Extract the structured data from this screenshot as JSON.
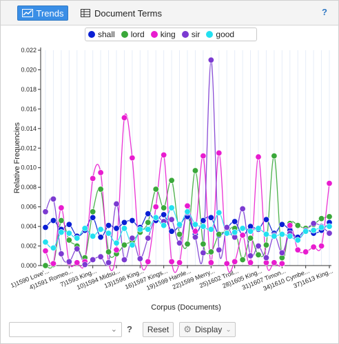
{
  "toolbar": {
    "trends_label": "Trends",
    "document_terms_label": "Document Terms",
    "help_label": "?"
  },
  "legend": [
    {
      "label": "shall",
      "color": "#0a1fd4"
    },
    {
      "label": "lord",
      "color": "#3aa83a"
    },
    {
      "label": "king",
      "color": "#e81ccf"
    },
    {
      "label": "sir",
      "color": "#7b3ad1"
    },
    {
      "label": "good",
      "color": "#22e0f0"
    }
  ],
  "footer": {
    "select_value": "",
    "help_label": "?",
    "reset_label": "Reset",
    "display_label": "Display"
  },
  "chart_data": {
    "type": "line",
    "xlabel": "Corpus (Documents)",
    "ylabel": "Relative Frequencies",
    "ylim": [
      0,
      0.022
    ],
    "yticks": [
      "0.000",
      "0.002",
      "0.004",
      "0.006",
      "0.008",
      "0.010",
      "0.012",
      "0.014",
      "0.016",
      "0.018",
      "0.020",
      "0.022"
    ],
    "x_tick_labels": [
      "1)1590 Love'...",
      "4)1591 Romeo...",
      "7)1593 King...",
      "10)1594 Midsu...",
      "13)1596 King...",
      "16)1597 Kings...",
      "19)1599 Hamle...",
      "22)1599 Merry...",
      "25)1602 Troil...",
      "28)1605 King...",
      "31)1607 Timon...",
      "34)1610 Cymbe...",
      "37)1613 King..."
    ],
    "x_tick_index": [
      0,
      3,
      6,
      9,
      12,
      15,
      18,
      21,
      24,
      27,
      30,
      33,
      36
    ],
    "n_docs": 37,
    "series": [
      {
        "name": "shall",
        "color": "#0a1fd4",
        "values": [
          0.0039,
          0.0046,
          0.0037,
          0.0042,
          0.003,
          0.0036,
          0.0049,
          0.0029,
          0.0041,
          0.0038,
          0.0044,
          0.0046,
          0.0039,
          0.0053,
          0.0046,
          0.0052,
          0.0035,
          0.0041,
          0.005,
          0.0032,
          0.0046,
          0.0049,
          0.0031,
          0.0038,
          0.0045,
          0.0031,
          0.004,
          0.0037,
          0.0047,
          0.0033,
          0.0042,
          0.0036,
          0.0029,
          0.0037,
          0.0033,
          0.0036,
          0.0044
        ]
      },
      {
        "name": "lord",
        "color": "#3aa83a",
        "values": [
          0.0,
          0.0001,
          0.0046,
          0.0026,
          0.002,
          0.0008,
          0.0055,
          0.0078,
          0.0014,
          0.0012,
          0.0021,
          0.0025,
          0.0034,
          0.0044,
          0.0078,
          0.0059,
          0.0087,
          0.0032,
          0.0022,
          0.0097,
          0.0022,
          0.0014,
          0.0032,
          0.0034,
          0.0038,
          0.0006,
          0.0028,
          0.0011,
          0.0021,
          0.0112,
          0.0008,
          0.0043,
          0.0041,
          0.0038,
          0.0042,
          0.0048,
          0.005
        ]
      },
      {
        "name": "king",
        "color": "#e81ccf",
        "values": [
          0.0015,
          0.0002,
          0.0059,
          0.0003,
          0.0003,
          0.0004,
          0.0089,
          0.0095,
          0.0003,
          0.0016,
          0.0151,
          0.011,
          0.0007,
          0.0004,
          0.006,
          0.0113,
          0.0004,
          0.0003,
          0.0061,
          0.0035,
          0.0112,
          0.0003,
          0.0115,
          0.0002,
          0.0004,
          0.0031,
          0.0003,
          0.0111,
          0.0003,
          0.0003,
          0.0002,
          0.0041,
          0.0016,
          0.0014,
          0.0019,
          0.002,
          0.0084
        ]
      },
      {
        "name": "sir",
        "color": "#7b3ad1",
        "values": [
          0.0055,
          0.0068,
          0.0012,
          0.0004,
          0.0017,
          0.0001,
          0.0006,
          0.0009,
          0.0003,
          0.0063,
          0.0006,
          0.0028,
          0.0007,
          0.0028,
          0.0049,
          0.0045,
          0.0047,
          0.0023,
          0.0054,
          0.0029,
          0.0013,
          0.021,
          0.0016,
          0.0039,
          0.0029,
          0.0058,
          0.001,
          0.002,
          0.0008,
          0.0031,
          0.0013,
          0.0033,
          0.0026,
          0.0036,
          0.0043,
          0.004,
          0.0033
        ]
      },
      {
        "name": "good",
        "color": "#22e0f0",
        "values": [
          0.0024,
          0.0018,
          0.0034,
          0.0033,
          0.0028,
          0.0038,
          0.003,
          0.0037,
          0.0033,
          0.0023,
          0.0038,
          0.0021,
          0.0037,
          0.0037,
          0.0049,
          0.0041,
          0.0059,
          0.0042,
          0.0055,
          0.0042,
          0.004,
          0.0037,
          0.0054,
          0.0033,
          0.0034,
          0.0038,
          0.0035,
          0.0038,
          0.0032,
          0.003,
          0.0032,
          0.003,
          0.0026,
          0.0035,
          0.0036,
          0.0039,
          0.004
        ]
      }
    ]
  }
}
